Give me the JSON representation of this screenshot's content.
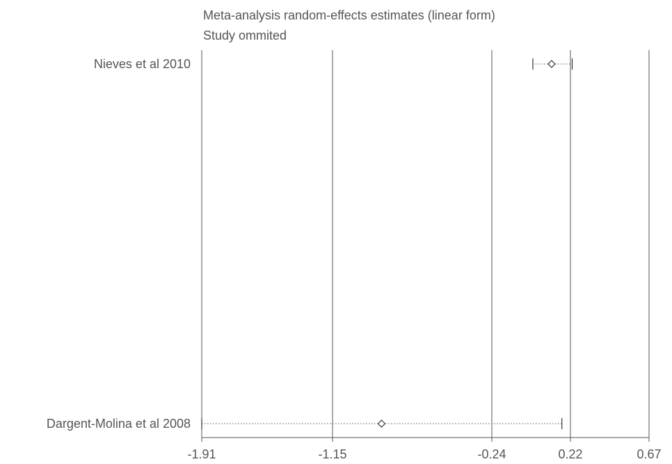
{
  "chart_data": {
    "type": "forest",
    "title": "Meta-analysis random-effects estimates (linear form)",
    "subtitle": "Study ommited",
    "x_ticks": [
      -1.91,
      -1.15,
      -0.24,
      0.22,
      0.67
    ],
    "tick_labels": [
      "-1.91",
      "-1.15",
      "-0.24",
      "0.22",
      "0.67"
    ],
    "xlim": [
      -1.91,
      0.67
    ],
    "studies": [
      {
        "label": "Nieves et al 2010",
        "estimate": 0.11,
        "ci_low": -0.0,
        "ci_high": 0.23
      },
      {
        "label": "Dargent-Molina et al 2008",
        "estimate": -0.87,
        "ci_low": -1.91,
        "ci_high": 0.17
      }
    ]
  }
}
